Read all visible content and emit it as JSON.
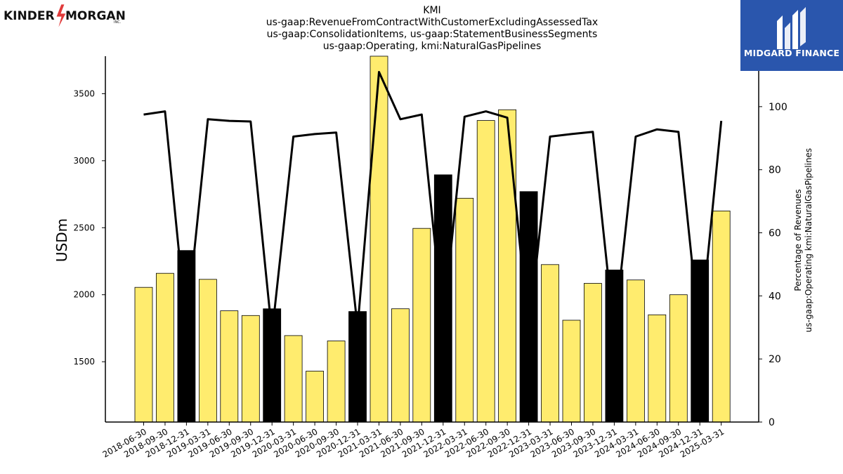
{
  "header": {
    "title_lines": [
      "KMI",
      "us-gaap:RevenueFromContractWithCustomerExcludingAssessedTax",
      "us-gaap:ConsolidationItems, us-gaap:StatementBusinessSegments",
      "us-gaap:Operating, kmi:NaturalGasPipelines"
    ]
  },
  "logos": {
    "left": {
      "text_a": "KINDER",
      "text_b": "MORGAN",
      "suffix": "INC."
    },
    "right": {
      "text": "MIDGARD FINANCE"
    }
  },
  "colors": {
    "bar_yellow": "#ffec6e",
    "bar_black": "#000000",
    "line": "#000000",
    "brand_blue": "#2a56ad"
  },
  "chart_data": {
    "type": "bar",
    "categories": [
      "2018-06-30",
      "2018-09-30",
      "2018-12-31",
      "2019-03-31",
      "2019-06-30",
      "2019-09-30",
      "2019-12-31",
      "2020-03-31",
      "2020-06-30",
      "2020-09-30",
      "2020-12-31",
      "2021-03-31",
      "2021-06-30",
      "2021-09-30",
      "2021-12-31",
      "2022-03-31",
      "2022-06-30",
      "2022-09-30",
      "2022-12-31",
      "2023-03-31",
      "2023-06-30",
      "2023-09-30",
      "2023-12-31",
      "2024-03-31",
      "2024-06-30",
      "2024-09-30",
      "2024-12-31",
      "2025-03-31"
    ],
    "values": [
      2055,
      2160,
      2330,
      2115,
      1880,
      1845,
      1895,
      1695,
      1430,
      1655,
      1875,
      3780,
      1895,
      2495,
      2895,
      2720,
      3300,
      3380,
      2770,
      2225,
      1810,
      2085,
      2185,
      2110,
      1850,
      2000,
      2260,
      2625
    ],
    "bar_colors": [
      "yellow",
      "yellow",
      "black",
      "yellow",
      "yellow",
      "yellow",
      "black",
      "yellow",
      "yellow",
      "yellow",
      "black",
      "yellow",
      "yellow",
      "yellow",
      "black",
      "yellow",
      "yellow",
      "yellow",
      "black",
      "yellow",
      "yellow",
      "yellow",
      "black",
      "yellow",
      "yellow",
      "yellow",
      "black",
      "yellow"
    ],
    "line_series": {
      "values": [
        97.5,
        98.5,
        30,
        96,
        95.5,
        95.3,
        28,
        90.5,
        91.3,
        91.8,
        30,
        111,
        96,
        97.5,
        31,
        96.8,
        98.5,
        96.5,
        28,
        90.5,
        91.3,
        92,
        28,
        90.5,
        92.8,
        92,
        27,
        95.5
      ]
    },
    "ylabel": "USDm",
    "ylabel_right": [
      "Percentage of Revenues",
      "us-gaap:Operating kmi:NaturalGasPipelines"
    ],
    "ylim": [
      1050,
      3780
    ],
    "ylim_right": [
      0,
      116
    ],
    "yticks": [
      1500,
      2000,
      2500,
      3000,
      3500
    ],
    "yticks_right": [
      0,
      20,
      40,
      60,
      80,
      100
    ],
    "grid": false,
    "legend": "none"
  }
}
